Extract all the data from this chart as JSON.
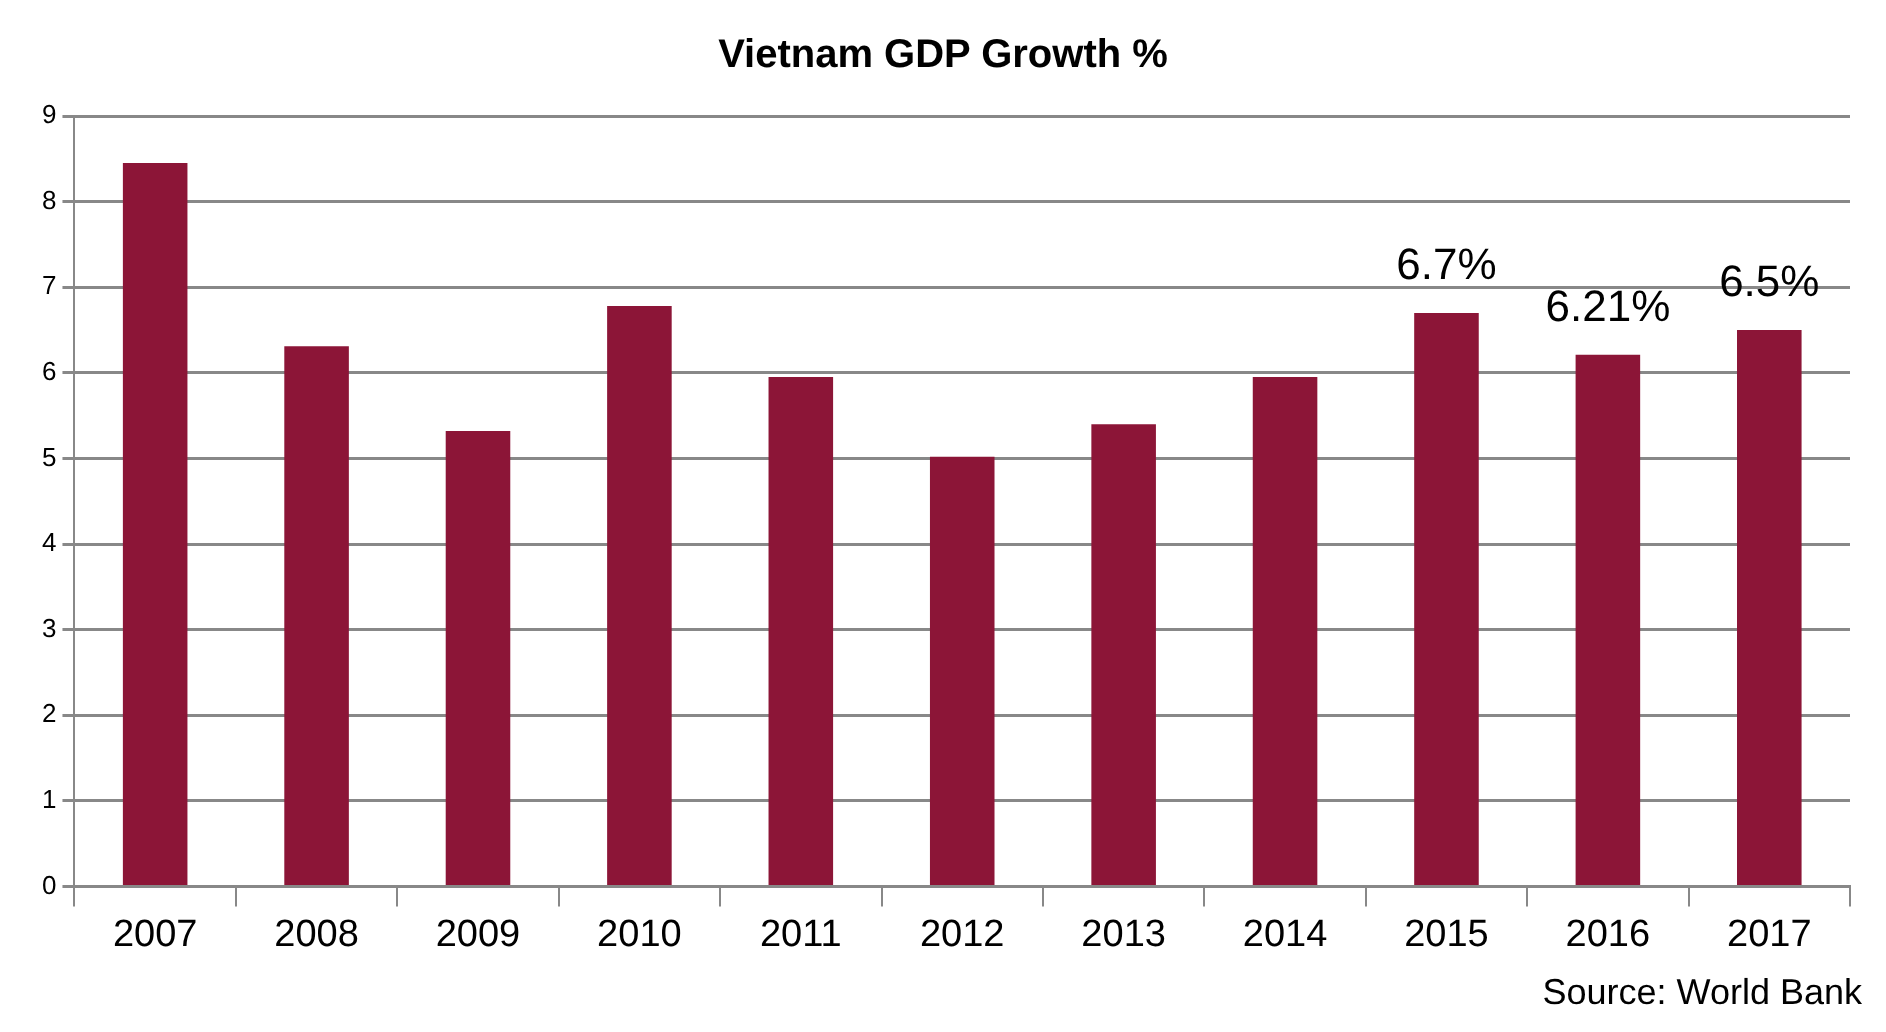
{
  "chart_data": {
    "type": "bar",
    "title": "Vietnam GDP Growth %",
    "categories": [
      "2007",
      "2008",
      "2009",
      "2010",
      "2011",
      "2012",
      "2013",
      "2014",
      "2015",
      "2016",
      "2017"
    ],
    "values": [
      8.45,
      6.31,
      5.32,
      6.78,
      5.95,
      5.02,
      5.4,
      5.95,
      6.7,
      6.21,
      6.5
    ],
    "value_labels": [
      null,
      null,
      null,
      null,
      null,
      null,
      null,
      null,
      "6.7%",
      "6.21%",
      "6.5%"
    ],
    "color": "#8c1537",
    "ylim": [
      0,
      9
    ],
    "yticks": [
      0,
      1,
      2,
      3,
      4,
      5,
      6,
      7,
      8,
      9
    ],
    "grid": "y",
    "legend": false,
    "annotations": [
      "Source: World Bank"
    ]
  }
}
